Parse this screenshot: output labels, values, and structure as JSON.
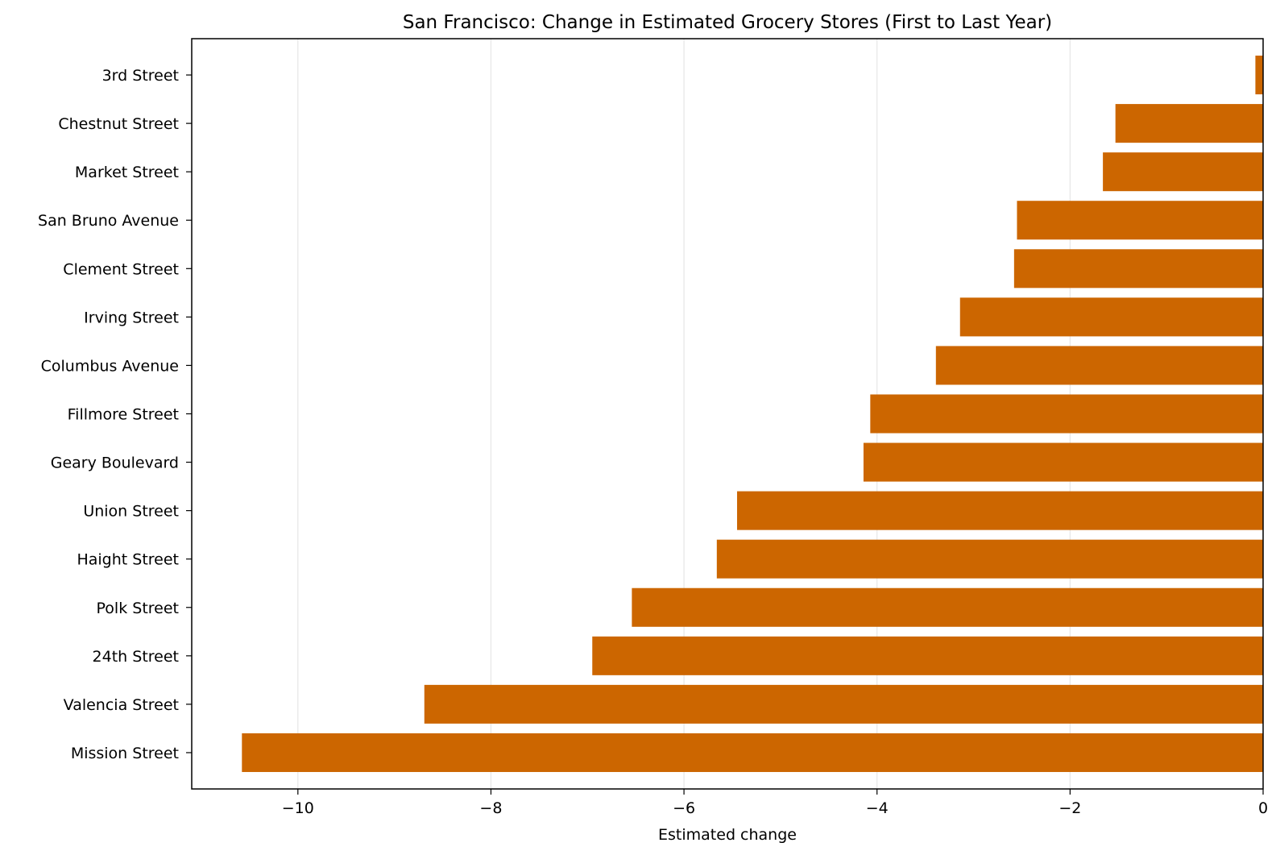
{
  "chart_data": {
    "type": "bar",
    "orientation": "horizontal",
    "title": "San Francisco: Change in Estimated Grocery Stores (First to Last Year)",
    "xlabel": "Estimated change",
    "ylabel": "",
    "xlim": [
      -11.1,
      0
    ],
    "xticks": [
      -10,
      -8,
      -6,
      -4,
      -2,
      0
    ],
    "xtick_labels": [
      "−10",
      "−8",
      "−6",
      "−4",
      "−2",
      "0"
    ],
    "grid": "vertical, light gray",
    "bar_color": "#cc6600",
    "categories": [
      "3rd Street",
      "Chestnut Street",
      "Market Street",
      "San Bruno Avenue",
      "Clement Street",
      "Irving Street",
      "Columbus Avenue",
      "Fillmore Street",
      "Geary Boulevard",
      "Union Street",
      "Haight Street",
      "Polk Street",
      "24th Street",
      "Valencia Street",
      "Mission Street"
    ],
    "values": [
      -0.08,
      -1.53,
      -1.66,
      -2.55,
      -2.58,
      -3.14,
      -3.39,
      -4.07,
      -4.14,
      -5.45,
      -5.66,
      -6.54,
      -6.95,
      -8.69,
      -10.58
    ]
  }
}
